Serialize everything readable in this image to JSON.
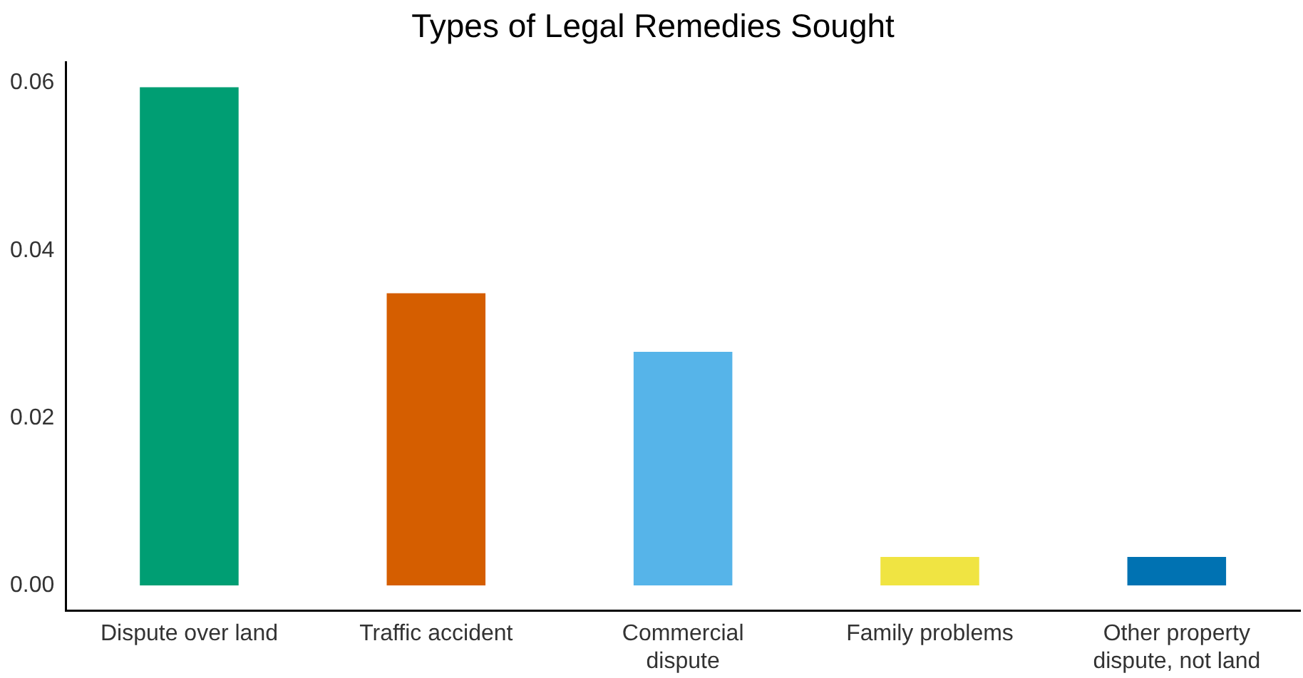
{
  "chart_data": {
    "type": "bar",
    "title": "Types of Legal Remedies Sought",
    "categories": [
      "Dispute over land",
      "Traffic accident",
      "Commercial dispute",
      "Family problems",
      "Other property dispute, not land"
    ],
    "values": [
      0.0595,
      0.0349,
      0.0279,
      0.0034,
      0.0034
    ],
    "colors": [
      "#009e73",
      "#d55e00",
      "#56b4e9",
      "#f0e442",
      "#0072b2"
    ],
    "ylim": [
      -0.003,
      0.0625
    ],
    "yticks": [
      {
        "value": 0,
        "label": "0.00"
      },
      {
        "value": 0.02,
        "label": "0.02"
      },
      {
        "value": 0.04,
        "label": "0.04"
      },
      {
        "value": 0.06,
        "label": "0.06"
      }
    ],
    "grid": false,
    "legend": false
  }
}
